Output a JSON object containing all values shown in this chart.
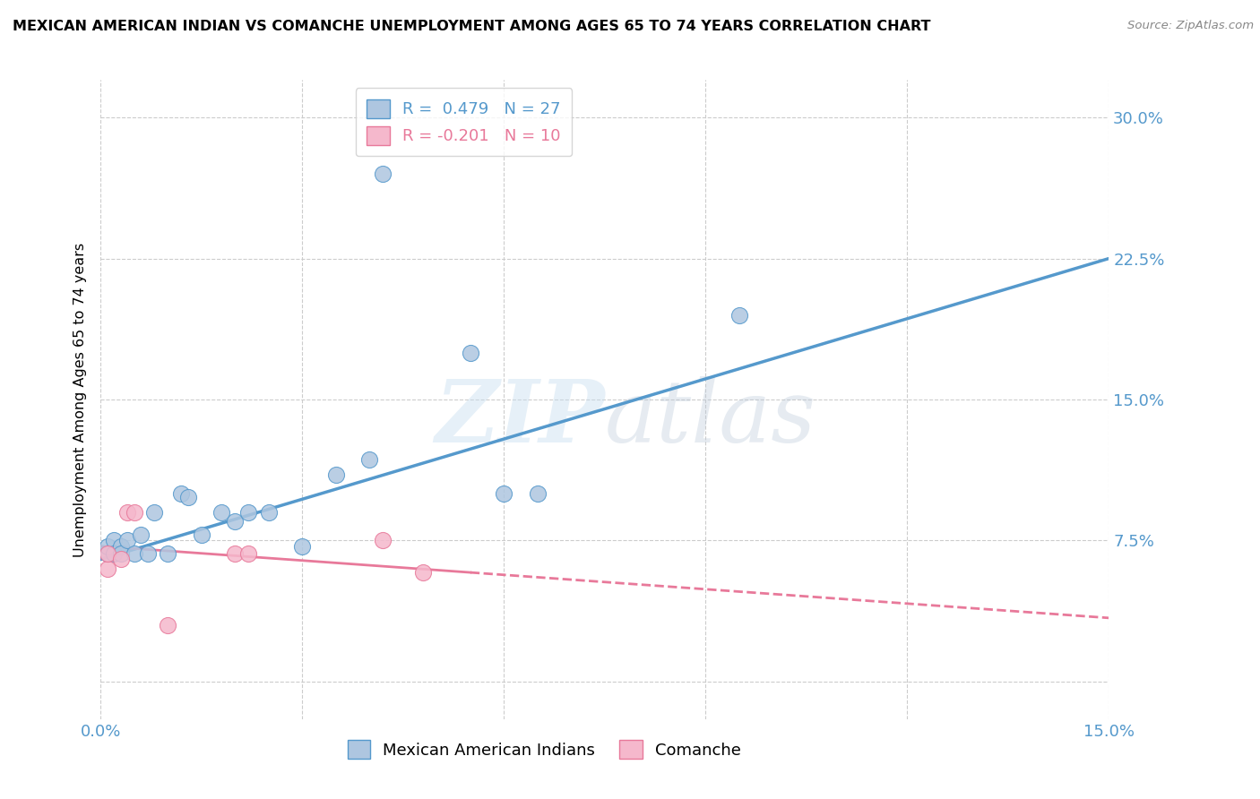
{
  "title": "MEXICAN AMERICAN INDIAN VS COMANCHE UNEMPLOYMENT AMONG AGES 65 TO 74 YEARS CORRELATION CHART",
  "source": "Source: ZipAtlas.com",
  "ylabel": "Unemployment Among Ages 65 to 74 years",
  "xlim": [
    0.0,
    0.15
  ],
  "ylim": [
    -0.02,
    0.32
  ],
  "ytick_positions": [
    0.0,
    0.075,
    0.15,
    0.225,
    0.3
  ],
  "ytick_labels": [
    "",
    "7.5%",
    "15.0%",
    "22.5%",
    "30.0%"
  ],
  "xtick_positions": [
    0.0,
    0.03,
    0.06,
    0.09,
    0.12,
    0.15
  ],
  "xtick_labels": [
    "0.0%",
    "",
    "",
    "",
    "",
    "15.0%"
  ],
  "r_blue": 0.479,
  "n_blue": 27,
  "r_pink": -0.201,
  "n_pink": 10,
  "blue_color": "#aec6e0",
  "pink_color": "#f5b8cc",
  "line_blue": "#5599cc",
  "line_pink": "#e8799a",
  "legend_label_blue": "Mexican American Indians",
  "legend_label_pink": "Comanche",
  "blue_points": [
    [
      0.001,
      0.068
    ],
    [
      0.001,
      0.072
    ],
    [
      0.002,
      0.075
    ],
    [
      0.002,
      0.068
    ],
    [
      0.003,
      0.072
    ],
    [
      0.003,
      0.068
    ],
    [
      0.004,
      0.075
    ],
    [
      0.005,
      0.068
    ],
    [
      0.006,
      0.078
    ],
    [
      0.007,
      0.068
    ],
    [
      0.008,
      0.09
    ],
    [
      0.01,
      0.068
    ],
    [
      0.012,
      0.1
    ],
    [
      0.013,
      0.098
    ],
    [
      0.015,
      0.078
    ],
    [
      0.018,
      0.09
    ],
    [
      0.02,
      0.085
    ],
    [
      0.022,
      0.09
    ],
    [
      0.025,
      0.09
    ],
    [
      0.03,
      0.072
    ],
    [
      0.035,
      0.11
    ],
    [
      0.04,
      0.118
    ],
    [
      0.042,
      0.27
    ],
    [
      0.055,
      0.175
    ],
    [
      0.06,
      0.1
    ],
    [
      0.065,
      0.1
    ],
    [
      0.095,
      0.195
    ]
  ],
  "pink_points": [
    [
      0.001,
      0.06
    ],
    [
      0.001,
      0.068
    ],
    [
      0.003,
      0.065
    ],
    [
      0.004,
      0.09
    ],
    [
      0.005,
      0.09
    ],
    [
      0.01,
      0.03
    ],
    [
      0.02,
      0.068
    ],
    [
      0.022,
      0.068
    ],
    [
      0.042,
      0.075
    ],
    [
      0.048,
      0.058
    ]
  ]
}
